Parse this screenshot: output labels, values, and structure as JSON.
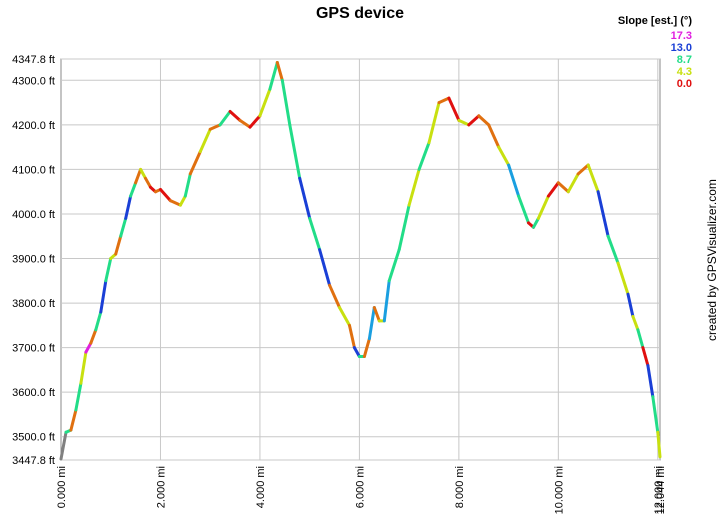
{
  "chart_data": {
    "type": "line",
    "title": "GPS device",
    "xlabel": "",
    "ylabel": "",
    "xlim": [
      0,
      12.044
    ],
    "ylim": [
      3447.8,
      4347.8
    ],
    "grid": true,
    "x_ticks": [
      {
        "value": 0,
        "label": "0.000 mi"
      },
      {
        "value": 2,
        "label": "2.000 mi"
      },
      {
        "value": 4,
        "label": "4.000 mi"
      },
      {
        "value": 6,
        "label": "6.000 mi"
      },
      {
        "value": 8,
        "label": "8.000 mi"
      },
      {
        "value": 10,
        "label": "10.000 mi"
      },
      {
        "value": 12,
        "label": "12.000 mi"
      },
      {
        "value": 12.044,
        "label": "12.044 mi"
      }
    ],
    "y_ticks": [
      {
        "value": 3447.8,
        "label": "3447.8 ft"
      },
      {
        "value": 3500,
        "label": "3500.0 ft"
      },
      {
        "value": 3600,
        "label": "3600.0 ft"
      },
      {
        "value": 3700,
        "label": "3700.0 ft"
      },
      {
        "value": 3800,
        "label": "3800.0 ft"
      },
      {
        "value": 3900,
        "label": "3900.0 ft"
      },
      {
        "value": 4000,
        "label": "4000.0 ft"
      },
      {
        "value": 4100,
        "label": "4100.0 ft"
      },
      {
        "value": 4200,
        "label": "4200.0 ft"
      },
      {
        "value": 4300,
        "label": "4300.0 ft"
      },
      {
        "value": 4347.8,
        "label": "4347.8 ft"
      }
    ],
    "legend": {
      "title": "Slope [est.] (°)",
      "placement": "top-right",
      "entries": [
        {
          "label": "17.3",
          "color": "#e020e0"
        },
        {
          "label": "13.0",
          "color": "#1a3fd6"
        },
        {
          "label": "8.7",
          "color": "#22dd88"
        },
        {
          "label": "4.3",
          "color": "#c8e010"
        },
        {
          "label": "0.0",
          "color": "#e01010"
        }
      ]
    },
    "series": [
      {
        "x": [
          0.0,
          0.1,
          0.2,
          0.3,
          0.4,
          0.5,
          0.6,
          0.7,
          0.8,
          0.9,
          1.0,
          1.1,
          1.2,
          1.3,
          1.4,
          1.5,
          1.6,
          1.7,
          1.8,
          1.9,
          2.0,
          2.2,
          2.4,
          2.5,
          2.6,
          2.8,
          3.0,
          3.2,
          3.4,
          3.6,
          3.8,
          4.0,
          4.2,
          4.35,
          4.45,
          4.6,
          4.8,
          5.0,
          5.2,
          5.4,
          5.6,
          5.8,
          5.9,
          6.0,
          6.1,
          6.2,
          6.3,
          6.4,
          6.5,
          6.6,
          6.8,
          7.0,
          7.2,
          7.4,
          7.6,
          7.8,
          8.0,
          8.2,
          8.4,
          8.6,
          8.8,
          9.0,
          9.2,
          9.4,
          9.5,
          9.6,
          9.8,
          10.0,
          10.2,
          10.4,
          10.6,
          10.8,
          11.0,
          11.2,
          11.4,
          11.5,
          11.6,
          11.7,
          11.8,
          11.9,
          12.0,
          12.044
        ],
        "y": [
          3450,
          3510,
          3515,
          3560,
          3620,
          3690,
          3710,
          3740,
          3780,
          3850,
          3900,
          3910,
          3950,
          3990,
          4040,
          4070,
          4100,
          4080,
          4060,
          4050,
          4055,
          4030,
          4020,
          4040,
          4090,
          4140,
          4190,
          4200,
          4230,
          4210,
          4195,
          4220,
          4280,
          4340,
          4300,
          4200,
          4080,
          3990,
          3920,
          3840,
          3790,
          3750,
          3700,
          3680,
          3680,
          3720,
          3790,
          3760,
          3760,
          3850,
          3920,
          4020,
          4100,
          4160,
          4250,
          4260,
          4210,
          4200,
          4220,
          4200,
          4150,
          4110,
          4040,
          3980,
          3970,
          3990,
          4040,
          4070,
          4050,
          4090,
          4110,
          4050,
          3950,
          3890,
          3820,
          3770,
          3740,
          3700,
          3660,
          3590,
          3510,
          3455
        ],
        "slope_colors": [
          "#808080",
          "#22dd88",
          "#e07010",
          "#22dd88",
          "#c8e010",
          "#e020e0",
          "#e07010",
          "#22dd88",
          "#1a3fd6",
          "#22dd88",
          "#c8e010",
          "#e07010",
          "#22dd88",
          "#1a3fd6",
          "#22dd88",
          "#e07010",
          "#c8e010",
          "#e07010",
          "#e01010",
          "#e07010",
          "#e01010",
          "#e07010",
          "#c8e010",
          "#22dd88",
          "#e07010",
          "#c8e010",
          "#e07010",
          "#22dd88",
          "#e01010",
          "#e07010",
          "#e01010",
          "#c8e010",
          "#22dd88",
          "#e07010",
          "#22dd88",
          "#22dd88",
          "#1a3fd6",
          "#22dd88",
          "#1a3fd6",
          "#e07010",
          "#c8e010",
          "#e07010",
          "#1a3fd6",
          "#22dd88",
          "#e07010",
          "#1a9fe0",
          "#e07010",
          "#c8e010",
          "#1a9fe0",
          "#22dd88",
          "#22dd88",
          "#c8e010",
          "#22dd88",
          "#c8e010",
          "#e07010",
          "#e01010",
          "#c8e010",
          "#e01010",
          "#e07010",
          "#e07010",
          "#c8e010",
          "#1a9fe0",
          "#22dd88",
          "#e01010",
          "#22dd88",
          "#c8e010",
          "#e01010",
          "#e07010",
          "#c8e010",
          "#e07010",
          "#c8e010",
          "#1a3fd6",
          "#22dd88",
          "#c8e010",
          "#1a3fd6",
          "#c8e010",
          "#22dd88",
          "#e01010",
          "#1a3fd6",
          "#22dd88",
          "#c8e010"
        ]
      }
    ],
    "side_note": "created by GPSVisualizer.com"
  }
}
